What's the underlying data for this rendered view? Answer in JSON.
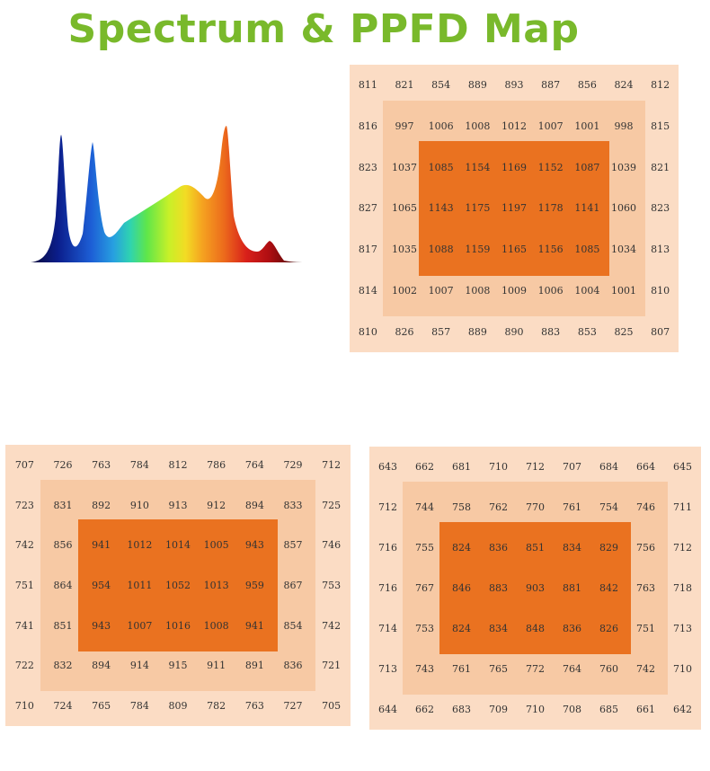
{
  "title": "Spectrum & PPFD Map",
  "colors": {
    "title": "#79b92b",
    "outer": "#fbdcc4",
    "middle": "#f7c9a4",
    "core": "#ea7220",
    "text": "#333333"
  },
  "maps": [
    {
      "name": "map-top-right",
      "rows": [
        [
          "811",
          "821",
          "854",
          "889",
          "893",
          "887",
          "856",
          "824",
          "812"
        ],
        [
          "816",
          "997",
          "1006",
          "1008",
          "1012",
          "1007",
          "1001",
          "998",
          "815"
        ],
        [
          "823",
          "1037",
          "1085",
          "1154",
          "1169",
          "1152",
          "1087",
          "1039",
          "821"
        ],
        [
          "827",
          "1065",
          "1143",
          "1175",
          "1197",
          "1178",
          "1141",
          "1060",
          "823"
        ],
        [
          "817",
          "1035",
          "1088",
          "1159",
          "1165",
          "1156",
          "1085",
          "1034",
          "813"
        ],
        [
          "814",
          "1002",
          "1007",
          "1008",
          "1009",
          "1006",
          "1004",
          "1001",
          "810"
        ],
        [
          "810",
          "826",
          "857",
          "889",
          "890",
          "883",
          "853",
          "825",
          "807"
        ]
      ]
    },
    {
      "name": "map-bottom-left",
      "rows": [
        [
          "707",
          "726",
          "763",
          "784",
          "812",
          "786",
          "764",
          "729",
          "712"
        ],
        [
          "723",
          "831",
          "892",
          "910",
          "913",
          "912",
          "894",
          "833",
          "725"
        ],
        [
          "742",
          "856",
          "941",
          "1012",
          "1014",
          "1005",
          "943",
          "857",
          "746"
        ],
        [
          "751",
          "864",
          "954",
          "1011",
          "1052",
          "1013",
          "959",
          "867",
          "753"
        ],
        [
          "741",
          "851",
          "943",
          "1007",
          "1016",
          "1008",
          "941",
          "854",
          "742"
        ],
        [
          "722",
          "832",
          "894",
          "914",
          "915",
          "911",
          "891",
          "836",
          "721"
        ],
        [
          "710",
          "724",
          "765",
          "784",
          "809",
          "782",
          "763",
          "727",
          "705"
        ]
      ]
    },
    {
      "name": "map-bottom-right",
      "rows": [
        [
          "643",
          "662",
          "681",
          "710",
          "712",
          "707",
          "684",
          "664",
          "645"
        ],
        [
          "712",
          "744",
          "758",
          "762",
          "770",
          "761",
          "754",
          "746",
          "711"
        ],
        [
          "716",
          "755",
          "824",
          "836",
          "851",
          "834",
          "829",
          "756",
          "712"
        ],
        [
          "716",
          "767",
          "846",
          "883",
          "903",
          "881",
          "842",
          "763",
          "718"
        ],
        [
          "714",
          "753",
          "824",
          "834",
          "848",
          "836",
          "826",
          "751",
          "713"
        ],
        [
          "713",
          "743",
          "761",
          "765",
          "772",
          "764",
          "760",
          "742",
          "710"
        ],
        [
          "644",
          "662",
          "683",
          "709",
          "710",
          "708",
          "685",
          "661",
          "642"
        ]
      ]
    }
  ]
}
